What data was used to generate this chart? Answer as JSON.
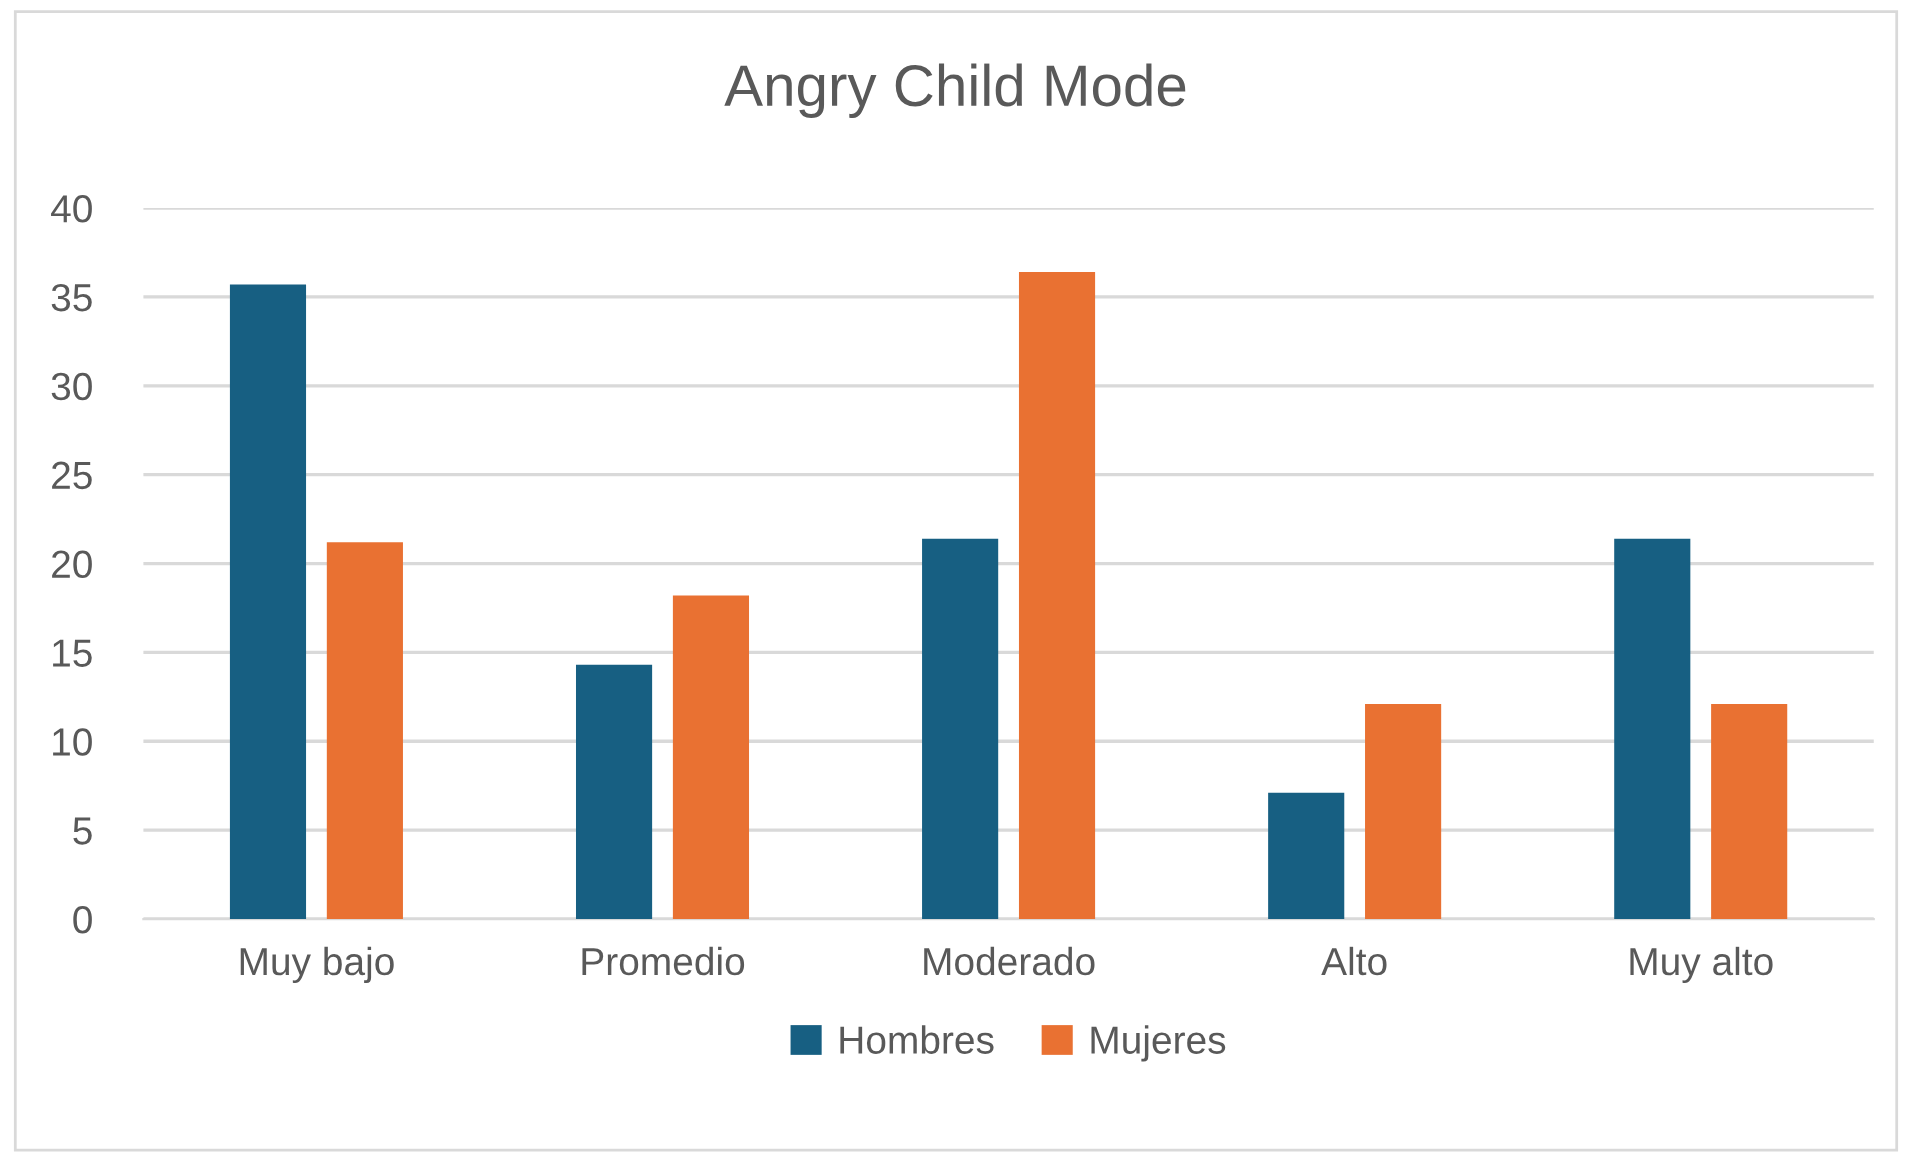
{
  "chart_data": {
    "type": "bar",
    "title": "Angry Child Mode",
    "categories": [
      "Muy bajo",
      "Promedio",
      "Moderado",
      "Alto",
      "Muy alto"
    ],
    "series": [
      {
        "name": "Hombres",
        "color": "#175f82",
        "values": [
          35.7,
          14.3,
          21.4,
          7.1,
          21.4
        ]
      },
      {
        "name": "Mujeres",
        "color": "#e97132",
        "values": [
          21.2,
          18.2,
          36.4,
          12.1,
          12.1
        ]
      }
    ],
    "ylim": [
      0,
      40
    ],
    "yticks": [
      0,
      5,
      10,
      15,
      20,
      25,
      30,
      35,
      40
    ],
    "grid": "y",
    "legend": "bottom"
  }
}
